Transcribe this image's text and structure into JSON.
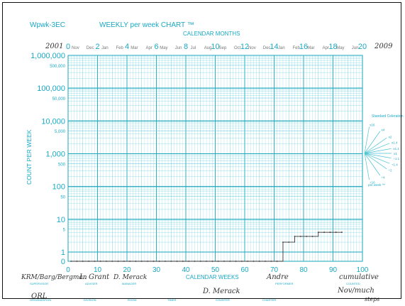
{
  "header": {
    "form_code": "Wpwk-3EC",
    "title": "WEEKLY per week CHART ™",
    "calendar_months_label": "CALENDAR MONTHS",
    "start_year": "2001",
    "end_year": "2009",
    "month_labels": [
      "Nov",
      "Dec",
      "Jan",
      "Feb",
      "Mar",
      "Apr",
      "May",
      "Jun",
      "Jul",
      "Aug",
      "Sep",
      "Oct",
      "Nov",
      "Dec",
      "Jan",
      "Feb",
      "Mar",
      "Apr",
      "May",
      "Jun"
    ],
    "month_week_numbers": [
      "0",
      "2",
      "4",
      "6",
      "8",
      "10",
      "12",
      "14",
      "16",
      "18",
      "20"
    ]
  },
  "axes": {
    "y_label": "COUNT PER WEEK",
    "x_label": "CALENDAR WEEKS",
    "y_tick_labels": [
      {
        "v": 1000000,
        "t": "1,000,000"
      },
      {
        "v": 500000,
        "t": "500,000"
      },
      {
        "v": 100000,
        "t": "100,000"
      },
      {
        "v": 50000,
        "t": "50,000"
      },
      {
        "v": 10000,
        "t": "10,000"
      },
      {
        "v": 5000,
        "t": "5,000"
      },
      {
        "v": 1000,
        "t": "1,000"
      },
      {
        "v": 500,
        "t": "500"
      },
      {
        "v": 100,
        "t": "100"
      },
      {
        "v": 50,
        "t": "50"
      },
      {
        "v": 10,
        "t": "10"
      },
      {
        "v": 5,
        "t": "5"
      },
      {
        "v": 1,
        "t": "1"
      },
      {
        "v": 0,
        "t": "0"
      }
    ],
    "x_tick_labels": [
      "0",
      "10",
      "20",
      "30",
      "40",
      "50",
      "60",
      "70",
      "80",
      "90",
      "100"
    ]
  },
  "celeration_fan": {
    "title": "Standard Celeration",
    "labels": [
      "x16",
      "x4",
      "x2",
      "x1.4",
      "x1.1",
      "x1",
      "÷1.1",
      "÷1.4",
      "÷2",
      "÷4",
      "÷16",
      "per week ™"
    ]
  },
  "footer": {
    "handwritten": {
      "supervisor": "KRM/Barg/Bergman",
      "adviser": "L. Grant",
      "manager": "D. Merack",
      "performer": "Andre",
      "counted": "cumulative",
      "counted_2": "Nov/much",
      "organization": "ORL",
      "behavior": "D. Merack",
      "notes": "steps"
    },
    "printed": {
      "supervisor": "SUPERVISOR",
      "adviser": "ADVISER",
      "manager": "MANAGER",
      "performer": "PERFORMER",
      "counted": "COUNTED",
      "organization": "ORGANIZATION",
      "division": "DIVISION",
      "room": "ROOM",
      "timer": "TIMER",
      "counter": "COUNTER",
      "charter": "CHARTER"
    }
  },
  "colors": {
    "grid": "#4cc4d4",
    "grid_dark": "#1aa6bc",
    "text": "#19a9c3",
    "data": "#333333"
  },
  "chart_data": {
    "type": "line",
    "title": "WEEKLY per week CHART ™",
    "xlabel": "CALENDAR WEEKS",
    "ylabel": "COUNT PER WEEK",
    "xlim": [
      0,
      100
    ],
    "ylim": [
      0,
      1000000
    ],
    "y_scale": "log",
    "grid": true,
    "series": [
      {
        "x": [
          1,
          3,
          5,
          7,
          9,
          11,
          13,
          15,
          17,
          19,
          21,
          23,
          25,
          27,
          29,
          31,
          33,
          35,
          37,
          39,
          41,
          43,
          45,
          47,
          49,
          51,
          53,
          55,
          57,
          59,
          61,
          63,
          65,
          67,
          69,
          71,
          73,
          75,
          77,
          79,
          81,
          83,
          85,
          87,
          89,
          91,
          93
        ],
        "y": [
          0,
          0,
          0,
          0,
          0,
          0,
          0,
          0,
          0,
          0,
          0,
          0,
          0,
          0,
          0,
          0,
          0,
          0,
          0,
          0,
          0,
          0,
          0,
          0,
          0,
          0,
          0,
          0,
          0,
          0,
          0,
          0,
          0,
          0,
          0,
          0,
          2,
          2,
          3,
          3,
          3,
          3,
          4,
          4,
          4,
          4,
          4
        ]
      }
    ]
  }
}
